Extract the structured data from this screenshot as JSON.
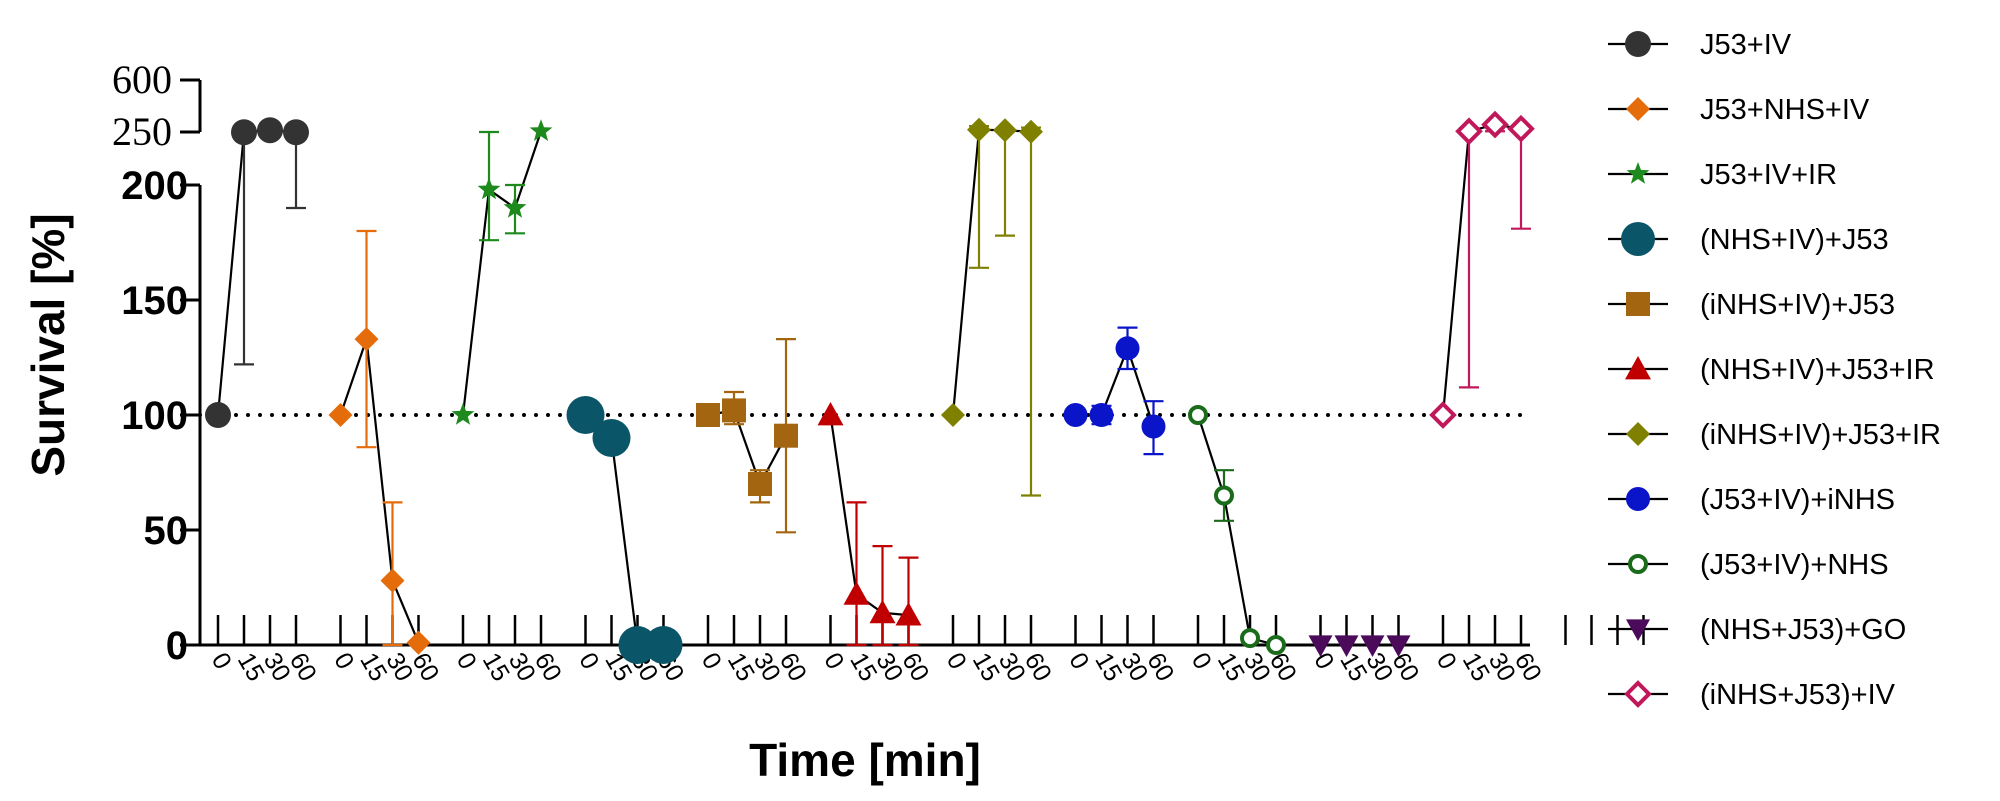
{
  "chart_data": {
    "type": "scatter",
    "title": "",
    "xlabel": "Time [min]",
    "ylabel": "Survival [%]",
    "reference_line": 100,
    "y_axis_lower": {
      "range": [
        0,
        200
      ],
      "ticks": [
        "0",
        "50",
        "100",
        "150",
        "200"
      ]
    },
    "y_axis_upper": {
      "ticks": [
        "250",
        "600"
      ]
    },
    "time_ticks": [
      "0",
      "15",
      "30",
      "60"
    ],
    "groups_per_axis": 12,
    "series": [
      {
        "name": "J53+IV",
        "color": "#333333",
        "marker": "circle",
        "marker_size": 13,
        "points": [
          {
            "v": 100
          },
          {
            "v": 245,
            "err_hi": 245,
            "err_lo": 122
          },
          {
            "v": 262
          },
          {
            "v": 245,
            "err_hi": 245,
            "err_lo": 190
          }
        ]
      },
      {
        "name": "J53+NHS+IV",
        "color": "#E46C0A",
        "marker": "diamond",
        "marker_size": 12,
        "points": [
          {
            "v": 100
          },
          {
            "v": 133,
            "err_hi": 180,
            "err_lo": 86
          },
          {
            "v": 28,
            "err_hi": 62,
            "err_lo": 0
          },
          {
            "v": 1
          }
        ]
      },
      {
        "name": "J53+IV+IR",
        "color": "#1E8A1E",
        "marker": "star",
        "marker_size": 12,
        "points": [
          {
            "v": 100
          },
          {
            "v": 198,
            "err_hi": 250,
            "err_lo": 176
          },
          {
            "v": 190,
            "err_hi": 200,
            "err_lo": 179
          },
          {
            "v": 255
          }
        ]
      },
      {
        "name": "(NHS+IV)+J53",
        "color": "#0B5569",
        "marker": "circle",
        "marker_size": 19,
        "points": [
          {
            "v": 100
          },
          {
            "v": 90
          },
          {
            "v": 0
          },
          {
            "v": 0
          }
        ]
      },
      {
        "name": "(iNHS+IV)+J53",
        "color": "#A3650F",
        "marker": "square",
        "marker_size": 12,
        "points": [
          {
            "v": 100
          },
          {
            "v": 102,
            "err_hi": 110,
            "err_lo": 96
          },
          {
            "v": 70,
            "err_hi": 76,
            "err_lo": 62
          },
          {
            "v": 91,
            "err_hi": 133,
            "err_lo": 49
          }
        ]
      },
      {
        "name": "(NHS+IV)+J53+IR",
        "color": "#C00000",
        "marker": "triangle-up",
        "marker_size": 13,
        "points": [
          {
            "v": 100
          },
          {
            "v": 22,
            "err_hi": 62,
            "err_lo": 0
          },
          {
            "v": 14,
            "err_hi": 43,
            "err_lo": 0
          },
          {
            "v": 13,
            "err_hi": 38,
            "err_lo": 0
          }
        ]
      },
      {
        "name": "(iNHS+IV)+J53+IR",
        "color": "#808000",
        "marker": "diamond",
        "marker_size": 12,
        "points": [
          {
            "v": 100
          },
          {
            "v": 265,
            "err_hi": 290,
            "err_lo": 164
          },
          {
            "v": 262,
            "err_hi": 262,
            "err_lo": 178
          },
          {
            "v": 252,
            "err_hi": 280,
            "err_lo": 65
          }
        ]
      },
      {
        "name": "(J53+IV)+iNHS",
        "color": "#0A14C8",
        "marker": "circle",
        "marker_size": 12,
        "points": [
          {
            "v": 100
          },
          {
            "v": 100,
            "err_hi": 104,
            "err_lo": 96
          },
          {
            "v": 129,
            "err_hi": 138,
            "err_lo": 120
          },
          {
            "v": 95,
            "err_hi": 106,
            "err_lo": 83
          }
        ]
      },
      {
        "name": "(J53+IV)+NHS",
        "color": "#1A6B1A",
        "marker": "circle-open",
        "marker_size": 10,
        "points": [
          {
            "v": 100
          },
          {
            "v": 65,
            "err_hi": 76,
            "err_lo": 54
          },
          {
            "v": 3
          },
          {
            "v": 0
          }
        ]
      },
      {
        "name": "(NHS+J53)+GO",
        "color": "#4B0A5A",
        "marker": "triangle-down",
        "marker_size": 12,
        "points": [
          {
            "v": 0
          },
          {
            "v": 0
          },
          {
            "v": 0
          },
          {
            "v": 0
          }
        ]
      },
      {
        "name": "(iNHS+J53)+IV",
        "color": "#C0185A",
        "marker": "diamond-open",
        "marker_size": 12,
        "points": [
          {
            "v": 100
          },
          {
            "v": 255,
            "err_hi": 275,
            "err_lo": 112
          },
          {
            "v": 300,
            "err_hi": 300,
            "err_lo": 255
          },
          {
            "v": 272,
            "err_hi": 290,
            "err_lo": 181
          }
        ]
      }
    ]
  }
}
